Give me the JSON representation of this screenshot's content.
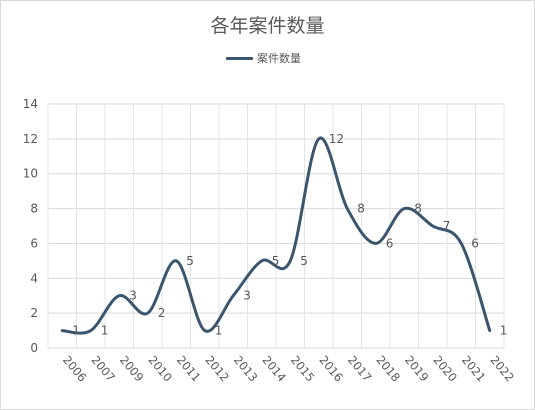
{
  "chart_data": {
    "type": "line",
    "title": "各年案件数量",
    "legend_position": "top",
    "grid": true,
    "smooth": true,
    "line_color": "#3a566f",
    "ylim": [
      0,
      14
    ],
    "yticks": [
      0,
      2,
      4,
      6,
      8,
      10,
      12,
      14
    ],
    "categories": [
      "2006",
      "2007",
      "2009",
      "2010",
      "2011",
      "2012",
      "2013",
      "2014",
      "2015",
      "2016",
      "2017",
      "2018",
      "2019",
      "2020",
      "2021",
      "2022"
    ],
    "series": [
      {
        "name": "案件数量",
        "values": [
          1,
          1,
          3,
          2,
          5,
          1,
          3,
          5,
          5,
          12,
          8,
          6,
          8,
          7,
          6,
          1
        ]
      }
    ]
  }
}
